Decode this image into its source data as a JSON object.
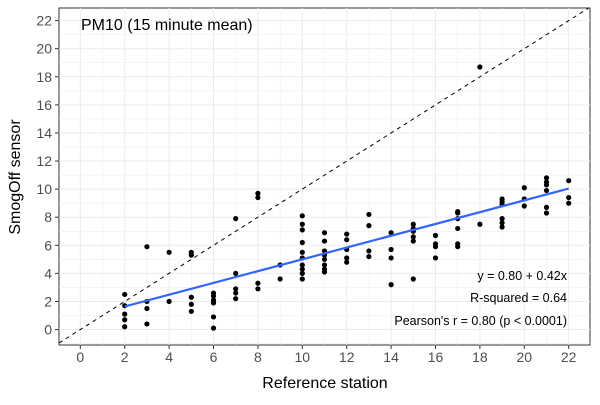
{
  "chart_data": {
    "type": "scatter",
    "title": "PM10 (15 minute mean)",
    "xlabel": "Reference station",
    "ylabel": "SmogOff sensor",
    "xlim": [
      -0.96,
      22.96
    ],
    "ylim": [
      -1.1,
      22.9
    ],
    "xticks": [
      0,
      2,
      4,
      6,
      8,
      10,
      12,
      14,
      16,
      18,
      20,
      22
    ],
    "yticks": [
      0,
      2,
      4,
      6,
      8,
      10,
      12,
      14,
      16,
      18,
      20,
      22
    ],
    "grid": true,
    "point_color": "#000000",
    "fit_color": "#3366FF",
    "points": {
      "x": [
        2,
        2,
        2,
        2,
        2,
        3,
        3,
        3,
        3,
        4,
        4,
        5,
        5,
        5,
        5,
        5,
        6,
        6,
        6,
        6,
        6,
        6,
        7,
        7,
        7,
        7,
        7,
        8,
        8,
        8,
        8,
        9,
        9,
        10,
        10,
        10,
        10,
        10,
        10,
        10,
        10,
        10,
        10,
        11,
        11,
        11,
        11,
        11,
        11,
        11,
        11,
        12,
        12,
        12,
        12,
        12,
        13,
        13,
        13,
        13,
        14,
        14,
        14,
        14,
        15,
        15,
        15,
        15,
        15,
        15,
        16,
        16,
        16,
        16,
        17,
        17,
        17,
        17,
        17,
        17,
        18,
        18,
        19,
        19,
        19,
        19,
        19,
        19,
        20,
        20,
        20,
        21,
        21,
        21,
        21,
        21,
        21,
        22,
        22,
        22
      ],
      "y": [
        2.5,
        1.7,
        1.1,
        0.7,
        0.2,
        5.9,
        2.0,
        1.5,
        0.4,
        5.5,
        2.0,
        5.5,
        5.3,
        2.3,
        1.8,
        1.3,
        2.6,
        2.4,
        2.1,
        1.9,
        0.9,
        0.1,
        7.9,
        4.0,
        2.9,
        2.6,
        2.2,
        9.7,
        9.4,
        3.3,
        2.9,
        4.6,
        3.6,
        8.1,
        7.5,
        7.1,
        6.2,
        5.5,
        5.1,
        4.6,
        4.3,
        4.0,
        3.6,
        6.9,
        6.3,
        5.6,
        5.3,
        5.0,
        4.6,
        4.3,
        4.1,
        6.8,
        6.4,
        5.7,
        5.1,
        4.8,
        8.2,
        7.4,
        5.6,
        5.2,
        6.9,
        5.7,
        5.1,
        3.2,
        7.5,
        7.2,
        7.0,
        6.6,
        6.3,
        3.6,
        6.7,
        6.1,
        5.9,
        5.1,
        8.4,
        8.3,
        7.9,
        7.2,
        6.1,
        5.9,
        18.7,
        7.5,
        9.3,
        9.1,
        8.9,
        7.9,
        7.6,
        7.3,
        10.1,
        9.3,
        8.8,
        10.8,
        10.5,
        10.3,
        9.9,
        8.7,
        8.3,
        10.6,
        9.4,
        9.0
      ]
    },
    "fit": {
      "intercept": 0.8,
      "slope": 0.42,
      "x_range": [
        2,
        22
      ]
    },
    "identity_line": true,
    "annotations": [
      "y = 0.80 + 0.42x",
      "R-squared = 0.64",
      "Pearson's r = 0.80 (p < 0.0001)"
    ]
  }
}
